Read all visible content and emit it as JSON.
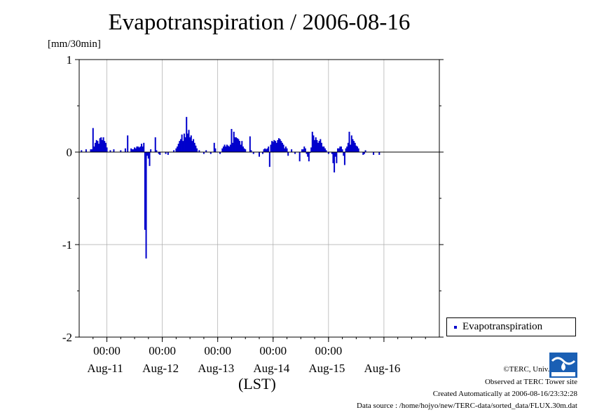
{
  "chart_data": {
    "type": "bar",
    "title": "Evapotranspiration / 2006-08-16",
    "ylabel": "[mm/30min]",
    "xlabel": "(LST)",
    "ylim": [
      -2,
      1
    ],
    "yticks": [
      1,
      0,
      -1,
      -2
    ],
    "xlim": [
      "2006-08-10 12:00",
      "2006-08-16 24:00"
    ],
    "x_time_ticks": [
      "00:00",
      "00:00",
      "00:00",
      "00:00",
      "00:00"
    ],
    "x_day_labels": [
      "Aug-11",
      "Aug-12",
      "Aug-13",
      "Aug-14",
      "Aug-15",
      "Aug-16"
    ],
    "grid": true,
    "legend_position": "right",
    "bar_color": "#0000cc",
    "series": [
      {
        "name": "Evapotranspiration",
        "points": [
          [
            "2006-08-10 13:00",
            0.02
          ],
          [
            "2006-08-10 15:00",
            0.03
          ],
          [
            "2006-08-10 17:00",
            0.03
          ],
          [
            "2006-08-10 17:30",
            0.03
          ],
          [
            "2006-08-10 18:00",
            0.26
          ],
          [
            "2006-08-10 18:30",
            0.06
          ],
          [
            "2006-08-10 19:00",
            0.1
          ],
          [
            "2006-08-10 19:30",
            0.13
          ],
          [
            "2006-08-10 20:00",
            0.12
          ],
          [
            "2006-08-10 20:30",
            0.09
          ],
          [
            "2006-08-10 21:00",
            0.15
          ],
          [
            "2006-08-10 21:30",
            0.16
          ],
          [
            "2006-08-10 22:00",
            0.13
          ],
          [
            "2006-08-10 22:30",
            0.16
          ],
          [
            "2006-08-10 23:00",
            0.12
          ],
          [
            "2006-08-10 23:30",
            0.1
          ],
          [
            "2006-08-11 00:00",
            0.05
          ],
          [
            "2006-08-11 01:30",
            0.02
          ],
          [
            "2006-08-11 03:00",
            0.03
          ],
          [
            "2006-08-11 06:00",
            0.02
          ],
          [
            "2006-08-11 08:00",
            0.04
          ],
          [
            "2006-08-11 09:00",
            0.18
          ],
          [
            "2006-08-11 10:30",
            0.04
          ],
          [
            "2006-08-11 11:00",
            0.03
          ],
          [
            "2006-08-11 11:30",
            0.03
          ],
          [
            "2006-08-11 12:00",
            0.05
          ],
          [
            "2006-08-11 12:30",
            0.04
          ],
          [
            "2006-08-11 13:00",
            0.06
          ],
          [
            "2006-08-11 13:30",
            0.06
          ],
          [
            "2006-08-11 14:00",
            0.05
          ],
          [
            "2006-08-11 14:30",
            0.06
          ],
          [
            "2006-08-11 15:00",
            0.09
          ],
          [
            "2006-08-11 15:30",
            0.06
          ],
          [
            "2006-08-11 16:00",
            0.1
          ],
          [
            "2006-08-11 16:30",
            -0.84
          ],
          [
            "2006-08-11 17:00",
            -1.15
          ],
          [
            "2006-08-11 17:30",
            -0.04
          ],
          [
            "2006-08-11 18:00",
            -0.07
          ],
          [
            "2006-08-11 18:30",
            -0.15
          ],
          [
            "2006-08-11 19:00",
            0.03
          ],
          [
            "2006-08-11 21:00",
            0.16
          ],
          [
            "2006-08-11 21:30",
            0.02
          ],
          [
            "2006-08-11 22:30",
            -0.02
          ],
          [
            "2006-08-11 23:00",
            -0.03
          ],
          [
            "2006-08-12 01:30",
            -0.02
          ],
          [
            "2006-08-12 02:30",
            -0.03
          ],
          [
            "2006-08-12 05:00",
            0.02
          ],
          [
            "2006-08-12 06:00",
            0.04
          ],
          [
            "2006-08-12 06:30",
            0.06
          ],
          [
            "2006-08-12 07:00",
            0.09
          ],
          [
            "2006-08-12 07:30",
            0.12
          ],
          [
            "2006-08-12 08:00",
            0.14
          ],
          [
            "2006-08-12 08:30",
            0.19
          ],
          [
            "2006-08-12 09:00",
            0.12
          ],
          [
            "2006-08-12 09:30",
            0.2
          ],
          [
            "2006-08-12 10:00",
            0.16
          ],
          [
            "2006-08-12 10:30",
            0.38
          ],
          [
            "2006-08-12 11:00",
            0.2
          ],
          [
            "2006-08-12 11:30",
            0.24
          ],
          [
            "2006-08-12 12:00",
            0.16
          ],
          [
            "2006-08-12 12:30",
            0.18
          ],
          [
            "2006-08-12 13:00",
            0.12
          ],
          [
            "2006-08-12 13:30",
            0.14
          ],
          [
            "2006-08-12 14:00",
            0.1
          ],
          [
            "2006-08-12 14:30",
            0.07
          ],
          [
            "2006-08-12 15:00",
            0.04
          ],
          [
            "2006-08-12 16:00",
            0.02
          ],
          [
            "2006-08-12 18:00",
            -0.02
          ],
          [
            "2006-08-12 19:00",
            0.02
          ],
          [
            "2006-08-12 21:00",
            -0.02
          ],
          [
            "2006-08-12 22:30",
            0.1
          ],
          [
            "2006-08-12 23:00",
            0.04
          ],
          [
            "2006-08-13 01:00",
            -0.02
          ],
          [
            "2006-08-13 02:00",
            0.04
          ],
          [
            "2006-08-13 02:30",
            0.06
          ],
          [
            "2006-08-13 03:00",
            0.08
          ],
          [
            "2006-08-13 03:30",
            0.06
          ],
          [
            "2006-08-13 04:00",
            0.08
          ],
          [
            "2006-08-13 04:30",
            0.07
          ],
          [
            "2006-08-13 05:00",
            0.06
          ],
          [
            "2006-08-13 05:30",
            0.08
          ],
          [
            "2006-08-13 06:00",
            0.25
          ],
          [
            "2006-08-13 06:30",
            0.1
          ],
          [
            "2006-08-13 07:00",
            0.22
          ],
          [
            "2006-08-13 07:30",
            0.16
          ],
          [
            "2006-08-13 08:00",
            0.16
          ],
          [
            "2006-08-13 08:30",
            0.15
          ],
          [
            "2006-08-13 09:00",
            0.14
          ],
          [
            "2006-08-13 09:30",
            0.12
          ],
          [
            "2006-08-13 10:00",
            0.08
          ],
          [
            "2006-08-13 10:30",
            0.12
          ],
          [
            "2006-08-13 11:00",
            0.06
          ],
          [
            "2006-08-13 11:30",
            0.04
          ],
          [
            "2006-08-13 12:00",
            0.03
          ],
          [
            "2006-08-13 14:00",
            0.17
          ],
          [
            "2006-08-13 14:30",
            0.02
          ],
          [
            "2006-08-13 15:30",
            -0.02
          ],
          [
            "2006-08-13 18:00",
            -0.05
          ],
          [
            "2006-08-13 19:30",
            -0.02
          ],
          [
            "2006-08-13 20:00",
            0.03
          ],
          [
            "2006-08-13 20:30",
            0.04
          ],
          [
            "2006-08-13 21:00",
            0.03
          ],
          [
            "2006-08-13 21:30",
            0.04
          ],
          [
            "2006-08-13 22:00",
            0.06
          ],
          [
            "2006-08-13 22:30",
            -0.16
          ],
          [
            "2006-08-13 23:00",
            0.08
          ],
          [
            "2006-08-13 23:30",
            0.12
          ],
          [
            "2006-08-14 00:00",
            0.11
          ],
          [
            "2006-08-14 00:30",
            0.13
          ],
          [
            "2006-08-14 01:00",
            0.12
          ],
          [
            "2006-08-14 01:30",
            0.1
          ],
          [
            "2006-08-14 02:00",
            0.13
          ],
          [
            "2006-08-14 02:30",
            0.15
          ],
          [
            "2006-08-14 03:00",
            0.14
          ],
          [
            "2006-08-14 03:30",
            0.12
          ],
          [
            "2006-08-14 04:00",
            0.1
          ],
          [
            "2006-08-14 04:30",
            0.08
          ],
          [
            "2006-08-14 05:00",
            0.04
          ],
          [
            "2006-08-14 05:30",
            0.06
          ],
          [
            "2006-08-14 06:00",
            0.04
          ],
          [
            "2006-08-14 06:30",
            -0.04
          ],
          [
            "2006-08-14 08:00",
            0.03
          ],
          [
            "2006-08-14 09:30",
            -0.02
          ],
          [
            "2006-08-14 11:30",
            -0.1
          ],
          [
            "2006-08-14 12:30",
            0.03
          ],
          [
            "2006-08-14 13:00",
            0.03
          ],
          [
            "2006-08-14 13:30",
            0.06
          ],
          [
            "2006-08-14 14:00",
            0.04
          ],
          [
            "2006-08-14 14:30",
            -0.02
          ],
          [
            "2006-08-14 15:00",
            -0.05
          ],
          [
            "2006-08-14 15:30",
            -0.1
          ],
          [
            "2006-08-14 16:00",
            -0.01
          ],
          [
            "2006-08-14 16:30",
            0.05
          ],
          [
            "2006-08-14 17:00",
            0.22
          ],
          [
            "2006-08-14 17:30",
            0.18
          ],
          [
            "2006-08-14 18:00",
            0.13
          ],
          [
            "2006-08-14 18:30",
            0.16
          ],
          [
            "2006-08-14 19:00",
            0.13
          ],
          [
            "2006-08-14 19:30",
            0.1
          ],
          [
            "2006-08-14 20:00",
            0.12
          ],
          [
            "2006-08-14 20:30",
            0.14
          ],
          [
            "2006-08-14 21:00",
            0.1
          ],
          [
            "2006-08-14 21:30",
            0.06
          ],
          [
            "2006-08-14 22:00",
            0.06
          ],
          [
            "2006-08-14 22:30",
            0.04
          ],
          [
            "2006-08-14 23:00",
            0.02
          ],
          [
            "2006-08-15 00:00",
            -0.02
          ],
          [
            "2006-08-15 01:30",
            -0.02
          ],
          [
            "2006-08-15 02:00",
            -0.12
          ],
          [
            "2006-08-15 02:30",
            -0.22
          ],
          [
            "2006-08-15 03:00",
            -0.05
          ],
          [
            "2006-08-15 03:30",
            -0.12
          ],
          [
            "2006-08-15 04:00",
            0.04
          ],
          [
            "2006-08-15 04:30",
            0.04
          ],
          [
            "2006-08-15 05:00",
            0.06
          ],
          [
            "2006-08-15 05:30",
            0.06
          ],
          [
            "2006-08-15 06:00",
            0.03
          ],
          [
            "2006-08-15 06:30",
            -0.04
          ],
          [
            "2006-08-15 07:00",
            -0.14
          ],
          [
            "2006-08-15 07:30",
            0.04
          ],
          [
            "2006-08-15 08:00",
            0.06
          ],
          [
            "2006-08-15 08:30",
            0.1
          ],
          [
            "2006-08-15 09:00",
            0.22
          ],
          [
            "2006-08-15 09:30",
            0.08
          ],
          [
            "2006-08-15 10:00",
            0.18
          ],
          [
            "2006-08-15 10:30",
            0.14
          ],
          [
            "2006-08-15 11:00",
            0.12
          ],
          [
            "2006-08-15 11:30",
            0.1
          ],
          [
            "2006-08-15 12:00",
            0.07
          ],
          [
            "2006-08-15 12:30",
            0.06
          ],
          [
            "2006-08-15 13:00",
            0.04
          ],
          [
            "2006-08-15 15:00",
            -0.03
          ],
          [
            "2006-08-15 15:30",
            -0.02
          ],
          [
            "2006-08-15 16:00",
            0.02
          ],
          [
            "2006-08-15 19:30",
            -0.03
          ],
          [
            "2006-08-15 22:00",
            -0.03
          ]
        ]
      }
    ]
  },
  "credits": {
    "copyright": "©TERC, Univ. Tsukuba",
    "site": "Observed at TERC Tower site",
    "created": "Created Automatically at 2006-08-16/23:32:28",
    "source": "Data source : /home/hojyo/new/TERC-data/sorted_data/FLUX.30m.dat"
  }
}
